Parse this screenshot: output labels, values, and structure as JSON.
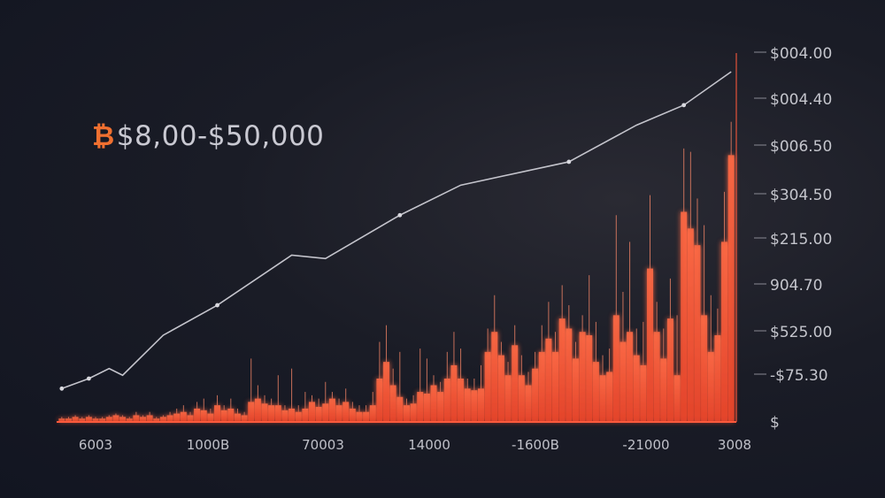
{
  "headline": {
    "icon": "bitcoin-icon",
    "icon_glyph": "₿",
    "text": "$8,00-$50,000"
  },
  "chart_data": {
    "type": "bar",
    "title": "",
    "xlabel": "",
    "ylabel": "",
    "x_tick_labels": [
      "6003",
      "1000B",
      "70003",
      "14000",
      "-1600B",
      "-21000",
      "3008"
    ],
    "y_tick_labels": [
      "$004.00",
      "$004.40",
      "$006.50",
      "$304.50",
      "$215.00",
      "904.70",
      "$525.00",
      "-$75.30",
      "$"
    ],
    "ylim": [
      0,
      100
    ],
    "grid": false,
    "legend": "none",
    "colors": {
      "bar": "#ff5a3c",
      "bar_glow": "#ff7a4a",
      "line": "#c4c4cc",
      "axis": "#ff6040"
    },
    "series": [
      {
        "kind": "bar",
        "values": [
          1,
          1,
          1.5,
          1,
          1.5,
          1,
          1,
          1.5,
          2,
          1.5,
          1,
          2,
          1.5,
          2,
          1,
          1.5,
          2,
          2.5,
          3,
          2,
          4,
          3.5,
          2.5,
          5,
          3.5,
          4,
          2.5,
          2,
          6,
          7,
          5.5,
          5,
          5,
          3.5,
          4,
          3,
          4,
          6,
          4.5,
          5.5,
          7,
          5,
          6,
          4,
          3,
          3,
          5,
          13,
          18,
          11,
          7.5,
          5,
          5.5,
          9,
          8.5,
          11,
          9,
          13,
          17,
          13,
          10,
          9.5,
          10,
          21,
          27,
          20,
          14,
          23,
          14,
          11,
          16,
          21,
          25,
          21,
          31,
          28,
          19,
          27,
          26,
          18,
          14,
          15,
          32,
          24,
          27,
          20,
          17,
          46,
          27,
          19,
          31,
          14,
          63,
          58,
          53,
          32,
          21,
          26,
          54,
          80
        ],
        "wick_high": [
          1.5,
          1.5,
          2,
          1.5,
          2,
          1.5,
          1.5,
          2,
          2.5,
          2,
          1.5,
          3,
          2,
          3,
          1.5,
          2,
          3,
          4,
          5,
          3,
          6,
          7,
          4,
          8,
          5,
          7,
          4,
          3,
          19,
          11,
          8,
          7,
          14,
          5,
          16,
          5,
          9,
          8,
          7,
          12,
          9,
          7,
          10,
          6,
          5,
          5,
          9,
          24,
          29,
          16,
          21,
          7,
          8,
          22,
          19,
          14,
          12,
          21,
          27,
          22,
          13,
          13,
          17,
          28,
          38,
          24,
          18,
          29,
          20,
          15,
          21,
          29,
          36,
          27,
          41,
          35,
          24,
          32,
          44,
          30,
          20,
          22,
          62,
          39,
          54,
          28,
          30,
          68,
          36,
          28,
          43,
          32,
          82,
          81,
          67,
          59,
          38,
          34,
          69,
          90
        ]
      },
      {
        "kind": "line",
        "x_index": [
          0,
          4,
          7,
          9,
          15,
          23,
          34,
          39,
          50,
          59,
          75,
          85,
          92,
          99
        ],
        "values": [
          10,
          13,
          16,
          14,
          26,
          35,
          50,
          49,
          62,
          71,
          78,
          89,
          95,
          105
        ],
        "marked_index": [
          0,
          4,
          23,
          50,
          75,
          92
        ]
      }
    ]
  }
}
